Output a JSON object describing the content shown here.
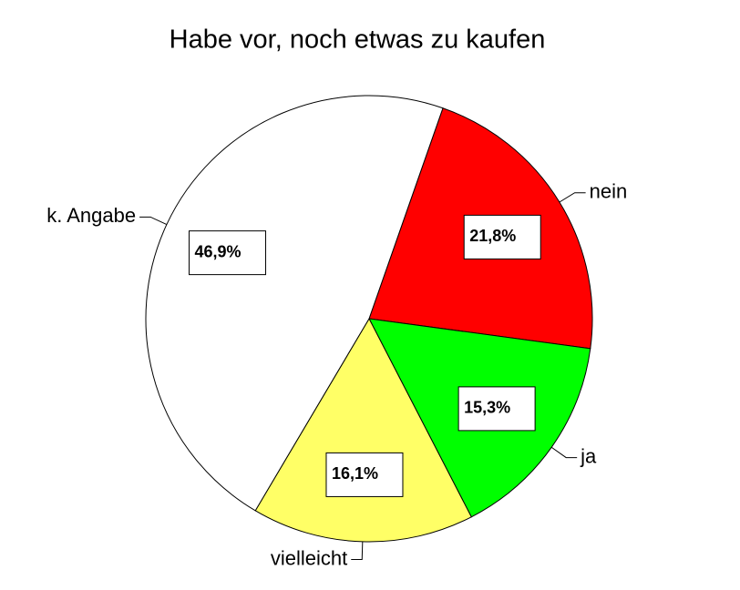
{
  "chart_data": {
    "type": "pie",
    "title": "Habe vor, noch etwas zu kaufen",
    "categories": [
      "nein",
      "ja",
      "vielleicht",
      "k. Angabe"
    ],
    "values": [
      21.8,
      15.3,
      16.1,
      46.9
    ],
    "value_labels": [
      "21,8%",
      "15,3%",
      "16,1%",
      "46,9%"
    ],
    "colors": [
      "#ff0000",
      "#00ff00",
      "#ffff66",
      "#ffffff"
    ]
  }
}
